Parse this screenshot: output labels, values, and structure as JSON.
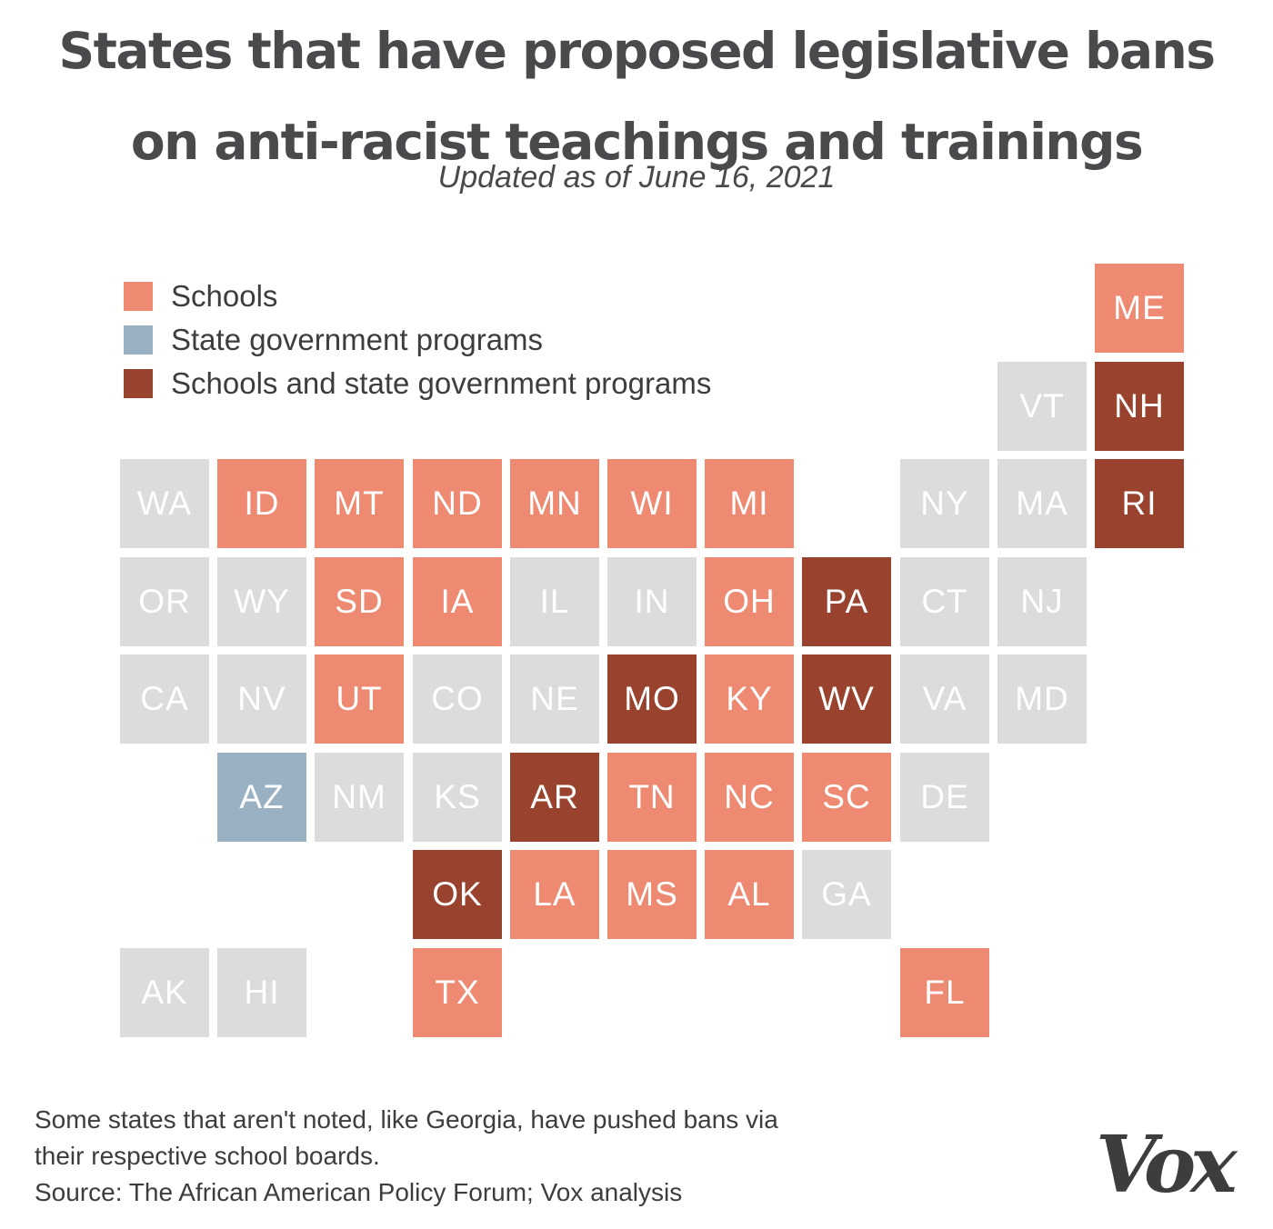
{
  "title": "States that have proposed legislative bans on anti-racist teachings and trainings",
  "subtitle": "Updated as of June 16, 2021",
  "colors": {
    "schools": "#ee8a72",
    "state_gov": "#9ab1c3",
    "both": "#99432e",
    "none": "#dcdcdc"
  },
  "legend": [
    {
      "label": "Schools",
      "category": "schools"
    },
    {
      "label": "State government programs",
      "category": "state_gov"
    },
    {
      "label": "Schools and state government programs",
      "category": "both"
    }
  ],
  "states": [
    {
      "abbr": "ME",
      "row": 0,
      "col": 10,
      "category": "schools"
    },
    {
      "abbr": "VT",
      "row": 1,
      "col": 9,
      "category": "none"
    },
    {
      "abbr": "NH",
      "row": 1,
      "col": 10,
      "category": "both"
    },
    {
      "abbr": "WA",
      "row": 2,
      "col": 0,
      "category": "none"
    },
    {
      "abbr": "ID",
      "row": 2,
      "col": 1,
      "category": "schools"
    },
    {
      "abbr": "MT",
      "row": 2,
      "col": 2,
      "category": "schools"
    },
    {
      "abbr": "ND",
      "row": 2,
      "col": 3,
      "category": "schools"
    },
    {
      "abbr": "MN",
      "row": 2,
      "col": 4,
      "category": "schools"
    },
    {
      "abbr": "WI",
      "row": 2,
      "col": 5,
      "category": "schools"
    },
    {
      "abbr": "MI",
      "row": 2,
      "col": 6,
      "category": "schools"
    },
    {
      "abbr": "NY",
      "row": 2,
      "col": 8,
      "category": "none"
    },
    {
      "abbr": "MA",
      "row": 2,
      "col": 9,
      "category": "none"
    },
    {
      "abbr": "RI",
      "row": 2,
      "col": 10,
      "category": "both"
    },
    {
      "abbr": "OR",
      "row": 3,
      "col": 0,
      "category": "none"
    },
    {
      "abbr": "WY",
      "row": 3,
      "col": 1,
      "category": "none"
    },
    {
      "abbr": "SD",
      "row": 3,
      "col": 2,
      "category": "schools"
    },
    {
      "abbr": "IA",
      "row": 3,
      "col": 3,
      "category": "schools"
    },
    {
      "abbr": "IL",
      "row": 3,
      "col": 4,
      "category": "none"
    },
    {
      "abbr": "IN",
      "row": 3,
      "col": 5,
      "category": "none"
    },
    {
      "abbr": "OH",
      "row": 3,
      "col": 6,
      "category": "schools"
    },
    {
      "abbr": "PA",
      "row": 3,
      "col": 7,
      "category": "both"
    },
    {
      "abbr": "CT",
      "row": 3,
      "col": 8,
      "category": "none"
    },
    {
      "abbr": "NJ",
      "row": 3,
      "col": 9,
      "category": "none"
    },
    {
      "abbr": "CA",
      "row": 4,
      "col": 0,
      "category": "none"
    },
    {
      "abbr": "NV",
      "row": 4,
      "col": 1,
      "category": "none"
    },
    {
      "abbr": "UT",
      "row": 4,
      "col": 2,
      "category": "schools"
    },
    {
      "abbr": "CO",
      "row": 4,
      "col": 3,
      "category": "none"
    },
    {
      "abbr": "NE",
      "row": 4,
      "col": 4,
      "category": "none"
    },
    {
      "abbr": "MO",
      "row": 4,
      "col": 5,
      "category": "both"
    },
    {
      "abbr": "KY",
      "row": 4,
      "col": 6,
      "category": "schools"
    },
    {
      "abbr": "WV",
      "row": 4,
      "col": 7,
      "category": "both"
    },
    {
      "abbr": "VA",
      "row": 4,
      "col": 8,
      "category": "none"
    },
    {
      "abbr": "MD",
      "row": 4,
      "col": 9,
      "category": "none"
    },
    {
      "abbr": "AZ",
      "row": 5,
      "col": 1,
      "category": "state_gov"
    },
    {
      "abbr": "NM",
      "row": 5,
      "col": 2,
      "category": "none"
    },
    {
      "abbr": "KS",
      "row": 5,
      "col": 3,
      "category": "none"
    },
    {
      "abbr": "AR",
      "row": 5,
      "col": 4,
      "category": "both"
    },
    {
      "abbr": "TN",
      "row": 5,
      "col": 5,
      "category": "schools"
    },
    {
      "abbr": "NC",
      "row": 5,
      "col": 6,
      "category": "schools"
    },
    {
      "abbr": "SC",
      "row": 5,
      "col": 7,
      "category": "schools"
    },
    {
      "abbr": "DE",
      "row": 5,
      "col": 8,
      "category": "none"
    },
    {
      "abbr": "OK",
      "row": 6,
      "col": 3,
      "category": "both"
    },
    {
      "abbr": "LA",
      "row": 6,
      "col": 4,
      "category": "schools"
    },
    {
      "abbr": "MS",
      "row": 6,
      "col": 5,
      "category": "schools"
    },
    {
      "abbr": "AL",
      "row": 6,
      "col": 6,
      "category": "schools"
    },
    {
      "abbr": "GA",
      "row": 6,
      "col": 7,
      "category": "none"
    },
    {
      "abbr": "AK",
      "row": 7,
      "col": 0,
      "category": "none"
    },
    {
      "abbr": "HI",
      "row": 7,
      "col": 1,
      "category": "none"
    },
    {
      "abbr": "TX",
      "row": 7,
      "col": 3,
      "category": "schools"
    },
    {
      "abbr": "FL",
      "row": 7,
      "col": 8,
      "category": "schools"
    }
  ],
  "footnote": "Some states that aren't noted, like Georgia, have pushed bans via their respective school boards.",
  "source": "Source: The African American Policy Forum; Vox analysis",
  "logo": "Vox"
}
